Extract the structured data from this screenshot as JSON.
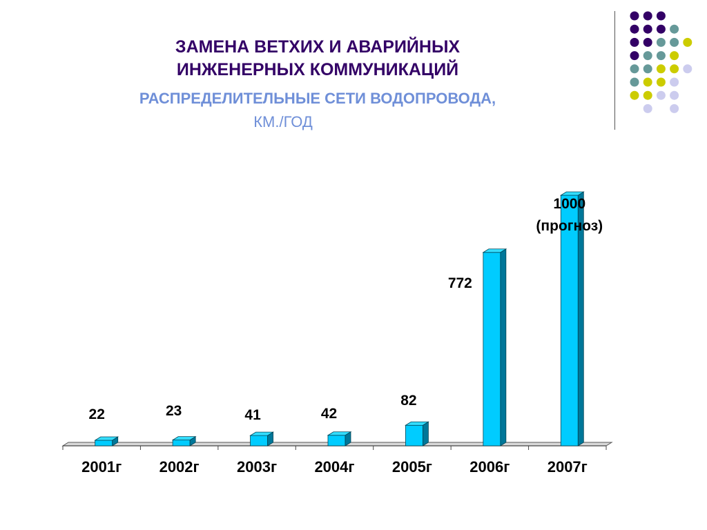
{
  "slide": {
    "title_line1": "ЗАМЕНА ВЕТХИХ И АВАРИЙНЫХ",
    "title_line2": "ИНЖЕНЕРНЫХ КОММУНИКАЦИЙ",
    "subtitle_line1": "РАСПРЕДЕЛИТЕЛЬНЫЕ СЕТИ ВОДОПРОВОДА,",
    "subtitle_line2": "КМ./ГОД"
  },
  "colors": {
    "title": "#330066",
    "subtitle": "#6f8fd8",
    "bar_front": "#00ccff",
    "bar_side": "#007799",
    "bar_top": "#33ddff",
    "dot_purple": "#330066",
    "dot_teal": "#669999",
    "dot_yellow": "#cccc00",
    "dot_lavender": "#ccccee"
  },
  "decor_dots": [
    [
      "purple",
      "purple",
      "purple",
      null,
      null
    ],
    [
      "purple",
      "purple",
      "purple",
      "teal",
      null
    ],
    [
      "purple",
      "purple",
      "teal",
      "teal",
      "yellow"
    ],
    [
      "purple",
      "teal",
      "teal",
      "yellow",
      null
    ],
    [
      "teal",
      "teal",
      "yellow",
      "yellow",
      "lavender"
    ],
    [
      "teal",
      "yellow",
      "yellow",
      "lavender",
      null
    ],
    [
      "yellow",
      "yellow",
      "lavender",
      "lavender",
      null
    ],
    [
      null,
      "lavender",
      null,
      "lavender",
      null
    ]
  ],
  "chart_data": {
    "type": "bar",
    "categories": [
      "2001г",
      "2002г",
      "2003г",
      "2004г",
      "2005г",
      "2006г",
      "2007г"
    ],
    "values": [
      22,
      23,
      41,
      42,
      82,
      772,
      1000
    ],
    "data_labels": [
      "22",
      "23",
      "41",
      "42",
      "82",
      "772",
      "1000\n(прогноз)"
    ],
    "ylim": [
      0,
      1000
    ],
    "grid": false,
    "legend": "none"
  }
}
